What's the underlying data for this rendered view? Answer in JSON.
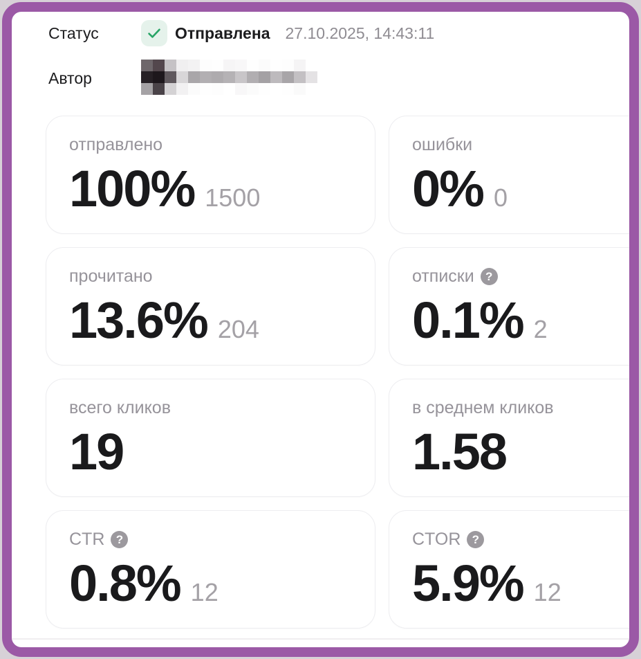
{
  "frame": {
    "border_color": "#9b59a6",
    "page_background": "#d7d1d7"
  },
  "header": {
    "status_label": "Статус",
    "status_value": "Отправлена",
    "status_icon": "checkmark-icon",
    "status_timestamp": "27.10.2025, 14:43:11",
    "author_label": "Автор",
    "author_redacted": true,
    "author_mosaic": [
      [
        "#6e676b",
        "#53474d",
        "#c5c2c5",
        "#f0eff0",
        "#f3f2f3",
        "#fdfdfd",
        "#fefefe",
        "#f6f5f6",
        "#f8f7f8",
        "#fefefe",
        "#fbfbfb",
        "#fefefe",
        "#fdfdfd",
        "#f5f4f5",
        "#ffffff"
      ],
      [
        "#262025",
        "#1d171c",
        "#5f585d",
        "#d8d6d8",
        "#a9a6a9",
        "#b2afb2",
        "#aeabae",
        "#b5b2b5",
        "#c8c5c8",
        "#b1aeb1",
        "#a4a1a4",
        "#bdbabd",
        "#a8a5a8",
        "#c3c0c3",
        "#e4e2e4"
      ],
      [
        "#a5a2a5",
        "#4a4348",
        "#d4d2d4",
        "#f2f1f2",
        "#fbfbfb",
        "#fefefe",
        "#fdfdfd",
        "#ffffff",
        "#f8f7f8",
        "#fbfbfb",
        "#fefefe",
        "#ffffff",
        "#fefefe",
        "#fafafa",
        "#ffffff"
      ]
    ]
  },
  "icons": {
    "help_glyph": "?",
    "check_color": "#27a466",
    "check_bg": "#e5f2eb",
    "help_bg": "#9c999e"
  },
  "cards": [
    {
      "label": "отправлено",
      "value": "100%",
      "secondary": "1500",
      "help_icon": false
    },
    {
      "label": "ошибки",
      "value": "0%",
      "secondary": "0",
      "help_icon": false
    },
    {
      "label": "прочитано",
      "value": "13.6%",
      "secondary": "204",
      "help_icon": false
    },
    {
      "label": "отписки",
      "value": "0.1%",
      "secondary": "2",
      "help_icon": true
    },
    {
      "label": "всего кликов",
      "value": "19",
      "secondary": "",
      "help_icon": false
    },
    {
      "label": "в среднем кликов",
      "value": "1.58",
      "secondary": "",
      "help_icon": false
    },
    {
      "label": "CTR",
      "value": "0.8%",
      "secondary": "12",
      "help_icon": true
    },
    {
      "label": "CTOR",
      "value": "5.9%",
      "secondary": "12",
      "help_icon": true
    }
  ]
}
